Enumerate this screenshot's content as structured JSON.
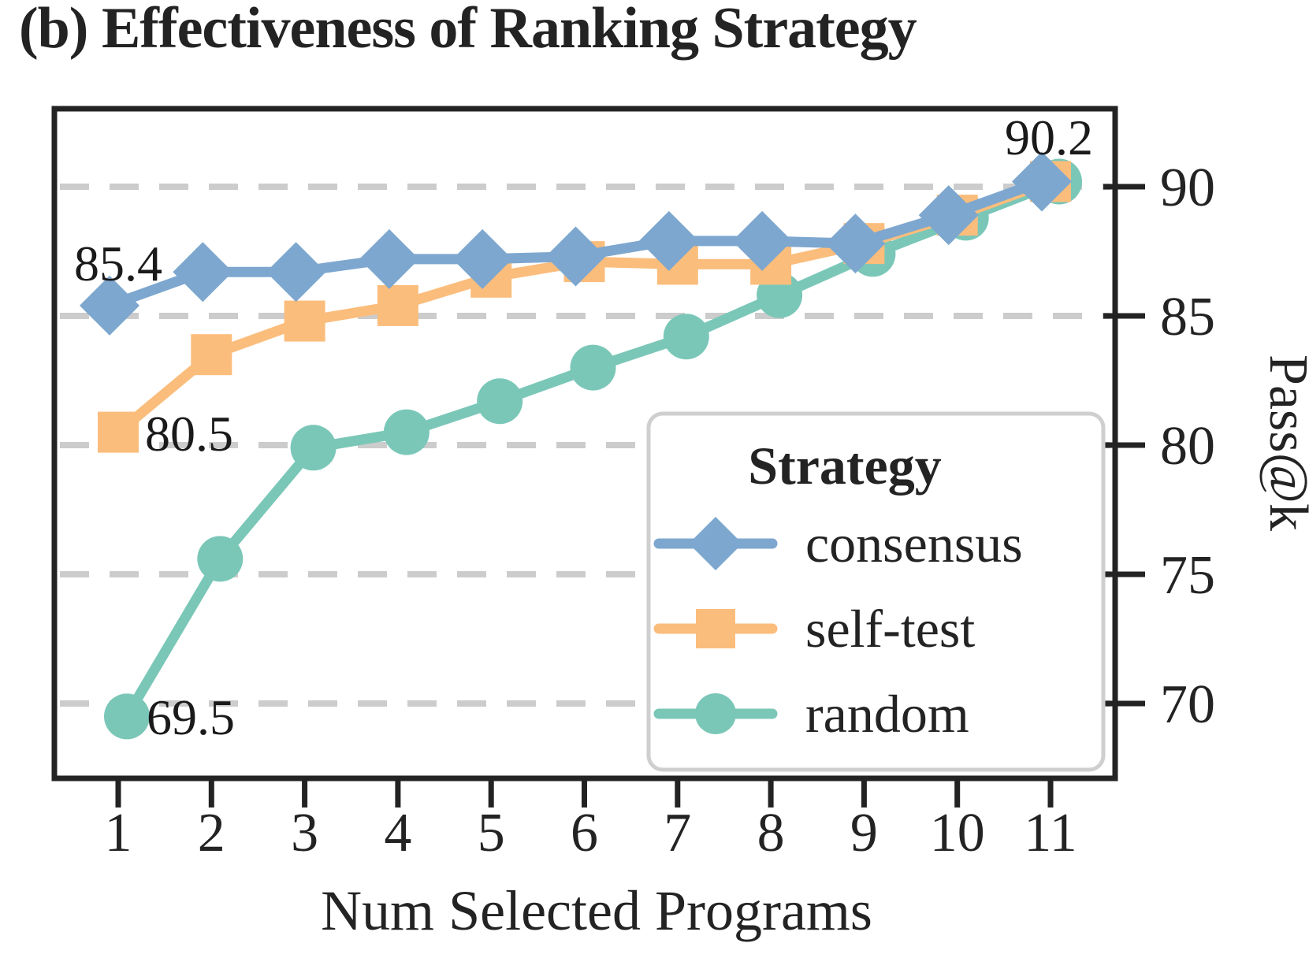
{
  "title": "(b) Effectiveness of Ranking Strategy",
  "axes": {
    "xlabel": "Num Selected Programs",
    "ylabel": "Pass@k",
    "xtick_labels": [
      "1",
      "2",
      "3",
      "4",
      "5",
      "6",
      "7",
      "8",
      "9",
      "10",
      "11"
    ],
    "ytick_labels": [
      "90",
      "85",
      "80",
      "75",
      "70"
    ]
  },
  "legend": {
    "title": "Strategy",
    "items": [
      {
        "label": "consensus",
        "marker": "diamond-icon"
      },
      {
        "label": "self-test",
        "marker": "square-icon"
      },
      {
        "label": "random",
        "marker": "circle-icon"
      }
    ]
  },
  "colors": {
    "consensus": "#7DA7CF",
    "self_test": "#FBBD7C",
    "random": "#7AC7B8",
    "grid": "#CCCCCC",
    "axis": "#232323",
    "legend_border": "#CFCFCF",
    "text": "#232323"
  },
  "chart_data": {
    "type": "line",
    "x": [
      1,
      2,
      3,
      4,
      5,
      6,
      7,
      8,
      9,
      10,
      11
    ],
    "xlabel": "Num Selected Programs",
    "ylabel": "Pass@k",
    "xlim": [
      0.3,
      11.7
    ],
    "ylim": [
      67.1,
      93.1
    ],
    "yticks": [
      90,
      85,
      80,
      75,
      70
    ],
    "grid": "horizontal-dashed",
    "legend_position": "lower right",
    "legend_title": "Strategy",
    "series": [
      {
        "name": "consensus",
        "marker": "diamond",
        "color": "#7DA7CF",
        "values": [
          85.4,
          86.7,
          86.7,
          87.2,
          87.2,
          87.3,
          87.9,
          87.9,
          87.8,
          88.9,
          90.2
        ]
      },
      {
        "name": "self-test",
        "marker": "square",
        "color": "#FBBD7C",
        "values": [
          80.5,
          83.5,
          84.8,
          85.4,
          86.5,
          87.1,
          87.0,
          87.0,
          87.8,
          88.9,
          90.2
        ]
      },
      {
        "name": "random",
        "marker": "circle",
        "color": "#7AC7B8",
        "values": [
          69.5,
          75.6,
          79.9,
          80.5,
          81.7,
          83.0,
          84.2,
          85.8,
          87.4,
          88.8,
          90.2
        ]
      }
    ],
    "annotations": [
      {
        "text": "85.4",
        "series": "consensus",
        "x": 1
      },
      {
        "text": "80.5",
        "series": "self-test",
        "x": 1
      },
      {
        "text": "69.5",
        "series": "random",
        "x": 1
      },
      {
        "text": "90.2",
        "series": "consensus",
        "x": 11
      }
    ]
  }
}
